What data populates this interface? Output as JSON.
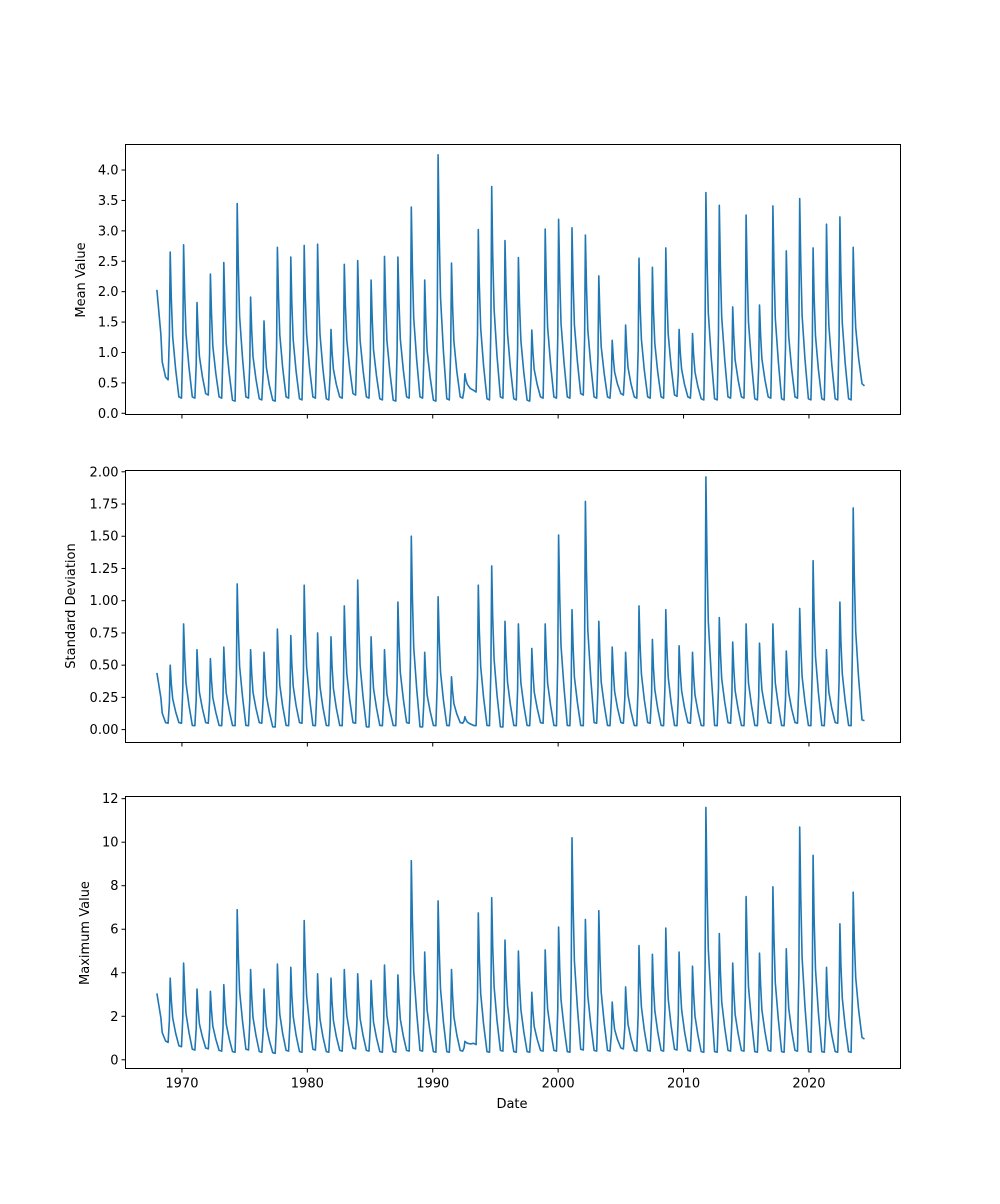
{
  "figure": {
    "xlabel": "Date"
  },
  "colors": {
    "series": "#1f77b4"
  },
  "chart_data": [
    {
      "type": "line",
      "ylabel": "Mean Value",
      "xlim": [
        1965.5,
        2027.3
      ],
      "ylim": [
        -0.02,
        4.42
      ],
      "xticks": [
        1970,
        1980,
        1990,
        2000,
        2010,
        2020
      ],
      "xtick_labels": [],
      "yticks": [
        0.0,
        0.5,
        1.0,
        1.5,
        2.0,
        2.5,
        3.0,
        3.5,
        4.0
      ],
      "ytick_labels": [
        "0.0",
        "0.5",
        "1.0",
        "1.5",
        "2.0",
        "2.5",
        "3.0",
        "3.5",
        "4.0"
      ],
      "grid": false,
      "peaks": [
        2.03,
        2.65,
        2.77,
        1.82,
        2.29,
        2.48,
        3.45,
        1.91,
        1.52,
        2.73,
        2.57,
        2.76,
        2.78,
        1.38,
        2.45,
        2.51,
        2.19,
        2.58,
        2.57,
        3.39,
        2.19,
        4.25,
        2.47,
        0.65,
        3.02,
        3.73,
        2.84,
        2.56,
        1.37,
        3.03,
        3.19,
        3.05,
        2.93,
        2.26,
        1.2,
        1.45,
        2.55,
        2.4,
        2.72,
        1.38,
        1.31,
        3.63,
        3.42,
        1.75,
        3.26,
        1.78,
        3.41,
        2.67,
        3.53,
        2.72,
        3.11,
        3.23,
        2.73
      ],
      "troughs": [
        0.55,
        0.25,
        0.25,
        0.3,
        0.25,
        0.2,
        0.25,
        0.22,
        0.2,
        0.25,
        0.22,
        0.25,
        0.22,
        0.25,
        0.3,
        0.25,
        0.22,
        0.2,
        0.25,
        0.25,
        0.2,
        0.22,
        0.25,
        0.35,
        0.22,
        0.25,
        0.22,
        0.2,
        0.25,
        0.25,
        0.25,
        0.3,
        0.25,
        0.25,
        0.3,
        0.25,
        0.25,
        0.25,
        0.28,
        0.25,
        0.22,
        0.22,
        0.25,
        0.25,
        0.22,
        0.25,
        0.22,
        0.25,
        0.22,
        0.22,
        0.22,
        0.22,
        0.45
      ]
    },
    {
      "type": "line",
      "ylabel": "Standard Deviation",
      "xlim": [
        1965.5,
        2027.3
      ],
      "ylim": [
        -0.1,
        2.01
      ],
      "xticks": [
        1970,
        1980,
        1990,
        2000,
        2010,
        2020
      ],
      "xtick_labels": [],
      "yticks": [
        0.0,
        0.25,
        0.5,
        0.75,
        1.0,
        1.25,
        1.5,
        1.75,
        2.0
      ],
      "ytick_labels": [
        "0.00",
        "0.25",
        "0.50",
        "0.75",
        "1.00",
        "1.25",
        "1.50",
        "1.75",
        "2.00"
      ],
      "grid": false,
      "peaks": [
        0.44,
        0.5,
        0.82,
        0.62,
        0.55,
        0.64,
        1.13,
        0.62,
        0.6,
        0.78,
        0.73,
        1.12,
        0.75,
        0.72,
        0.96,
        1.16,
        0.72,
        0.62,
        0.99,
        1.5,
        0.6,
        1.03,
        0.41,
        0.1,
        1.12,
        1.27,
        0.84,
        0.82,
        0.63,
        0.82,
        1.51,
        0.93,
        1.77,
        0.84,
        0.64,
        0.6,
        0.96,
        0.7,
        0.93,
        0.65,
        0.6,
        1.96,
        0.87,
        0.68,
        0.82,
        0.67,
        0.82,
        0.61,
        0.94,
        1.31,
        0.62,
        0.99,
        1.72
      ],
      "troughs": [
        0.05,
        0.05,
        0.03,
        0.05,
        0.03,
        0.03,
        0.03,
        0.05,
        0.02,
        0.03,
        0.05,
        0.03,
        0.03,
        0.03,
        0.05,
        0.02,
        0.03,
        0.03,
        0.05,
        0.02,
        0.03,
        0.03,
        0.05,
        0.03,
        0.03,
        0.02,
        0.03,
        0.03,
        0.05,
        0.03,
        0.03,
        0.03,
        0.05,
        0.03,
        0.05,
        0.03,
        0.05,
        0.03,
        0.03,
        0.05,
        0.03,
        0.03,
        0.05,
        0.03,
        0.03,
        0.05,
        0.03,
        0.05,
        0.03,
        0.03,
        0.05,
        0.03,
        0.07
      ]
    },
    {
      "type": "line",
      "ylabel": "Maximum Value",
      "xlabel": "Date",
      "xlim": [
        1965.5,
        2027.3
      ],
      "ylim": [
        -0.4,
        12.1
      ],
      "xticks": [
        1970,
        1980,
        1990,
        2000,
        2010,
        2020
      ],
      "xtick_labels": [
        "1970",
        "1980",
        "1990",
        "2000",
        "2010",
        "2020"
      ],
      "yticks": [
        0,
        2,
        4,
        6,
        8,
        10,
        12
      ],
      "ytick_labels": [
        "0",
        "2",
        "4",
        "6",
        "8",
        "10",
        "12"
      ],
      "grid": false,
      "peaks": [
        3.05,
        3.75,
        4.45,
        3.25,
        3.15,
        3.45,
        6.9,
        4.15,
        3.25,
        4.4,
        4.25,
        6.4,
        3.95,
        3.75,
        4.15,
        3.95,
        3.65,
        4.35,
        3.9,
        9.15,
        4.95,
        7.3,
        4.15,
        0.85,
        6.75,
        7.45,
        5.5,
        5.0,
        3.1,
        5.05,
        6.1,
        10.2,
        6.45,
        6.85,
        2.65,
        3.35,
        5.25,
        4.85,
        6.05,
        4.95,
        4.3,
        11.6,
        5.8,
        4.45,
        7.5,
        4.9,
        7.95,
        5.1,
        10.7,
        9.4,
        4.25,
        6.25,
        7.7
      ],
      "troughs": [
        0.8,
        0.6,
        0.45,
        0.5,
        0.4,
        0.35,
        0.45,
        0.35,
        0.3,
        0.4,
        0.35,
        0.45,
        0.35,
        0.4,
        0.5,
        0.4,
        0.35,
        0.35,
        0.4,
        0.4,
        0.35,
        0.35,
        0.4,
        0.7,
        0.35,
        0.4,
        0.35,
        0.35,
        0.4,
        0.4,
        0.35,
        0.45,
        0.4,
        0.4,
        0.5,
        0.4,
        0.4,
        0.4,
        0.45,
        0.4,
        0.35,
        0.35,
        0.4,
        0.4,
        0.35,
        0.4,
        0.35,
        0.4,
        0.35,
        0.35,
        0.35,
        0.35,
        0.95
      ]
    }
  ]
}
